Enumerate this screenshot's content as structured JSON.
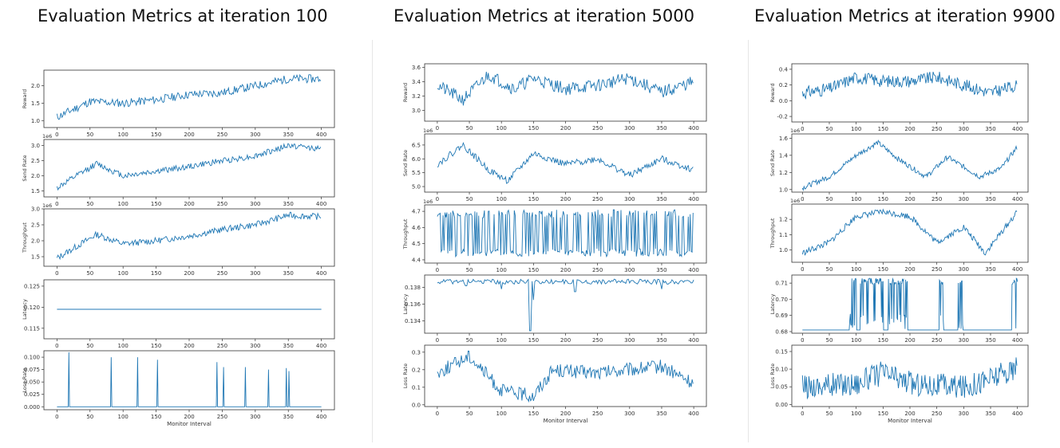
{
  "chart_data": [
    {
      "type": "line",
      "title": "Evaluation Metrics at iteration 100",
      "xlabel": "Monitor Interval",
      "xlim": [
        0,
        400
      ],
      "xticks": [
        "0",
        "50",
        "100",
        "150",
        "200",
        "250",
        "300",
        "350",
        "400"
      ],
      "color": "#1f77b4",
      "panels": [
        {
          "ylabel": "Reward",
          "ylim": [
            0.8,
            2.45
          ],
          "yticks": [
            "1.0",
            "1.5",
            "2.0"
          ],
          "offset": "",
          "shape": "trend",
          "base": 1.1,
          "amp": 1.1,
          "noise": 0.12,
          "seed": 11,
          "keypoints": [
            [
              0,
              1.1
            ],
            [
              50,
              1.55
            ],
            [
              100,
              1.5
            ],
            [
              150,
              1.6
            ],
            [
              200,
              1.75
            ],
            [
              250,
              1.8
            ],
            [
              300,
              2.0
            ],
            [
              350,
              2.2
            ],
            [
              400,
              2.2
            ]
          ]
        },
        {
          "ylabel": "Send Rate",
          "ylim": [
            1.3,
            3.2
          ],
          "yticks": [
            "1.5",
            "2.0",
            "2.5",
            "3.0"
          ],
          "offset": "1e6",
          "shape": "trend",
          "seed": 12,
          "noise": 0.1,
          "keypoints": [
            [
              0,
              1.6
            ],
            [
              60,
              2.4
            ],
            [
              100,
              2.0
            ],
            [
              150,
              2.15
            ],
            [
              200,
              2.3
            ],
            [
              250,
              2.5
            ],
            [
              300,
              2.65
            ],
            [
              350,
              3.0
            ],
            [
              400,
              2.9
            ]
          ]
        },
        {
          "ylabel": "Throughput",
          "ylim": [
            1.2,
            3.0
          ],
          "yticks": [
            "1.5",
            "2.0",
            "2.5",
            "3.0"
          ],
          "offset": "1e6",
          "shape": "trend",
          "seed": 13,
          "noise": 0.1,
          "keypoints": [
            [
              0,
              1.45
            ],
            [
              60,
              2.2
            ],
            [
              100,
              1.9
            ],
            [
              150,
              2.0
            ],
            [
              200,
              2.15
            ],
            [
              250,
              2.35
            ],
            [
              300,
              2.5
            ],
            [
              350,
              2.8
            ],
            [
              400,
              2.75
            ]
          ]
        },
        {
          "ylabel": "Latency",
          "ylim": [
            0.1125,
            0.1265
          ],
          "yticks": [
            "0.115",
            "0.120",
            "0.125"
          ],
          "offset": "",
          "shape": "flat",
          "value": 0.1195
        },
        {
          "ylabel": "Loss Rate",
          "ylim": [
            -0.006,
            0.113
          ],
          "yticks": [
            "0.000",
            "0.025",
            "0.050",
            "0.075",
            "0.100"
          ],
          "offset": "",
          "shape": "spikes",
          "spikes": [
            [
              18,
              0.11
            ],
            [
              82,
              0.1
            ],
            [
              122,
              0.1
            ],
            [
              152,
              0.095
            ],
            [
              242,
              0.09
            ],
            [
              252,
              0.08
            ],
            [
              285,
              0.08
            ],
            [
              320,
              0.075
            ],
            [
              347,
              0.078
            ],
            [
              351,
              0.072
            ]
          ]
        }
      ]
    },
    {
      "type": "line",
      "title": "Evaluation Metrics at iteration 5000",
      "xlabel": "Monitor Interval",
      "xlim": [
        0,
        400
      ],
      "xticks": [
        "0",
        "50",
        "100",
        "150",
        "200",
        "250",
        "300",
        "350",
        "400"
      ],
      "color": "#1f77b4",
      "panels": [
        {
          "ylabel": "Reward",
          "ylim": [
            2.85,
            3.65
          ],
          "yticks": [
            "3.0",
            "3.2",
            "3.4",
            "3.6"
          ],
          "offset": "",
          "shape": "noisy",
          "seed": 21,
          "noise": 0.09,
          "keypoints": [
            [
              0,
              3.35
            ],
            [
              40,
              3.15
            ],
            [
              80,
              3.5
            ],
            [
              120,
              3.3
            ],
            [
              150,
              3.45
            ],
            [
              200,
              3.3
            ],
            [
              250,
              3.35
            ],
            [
              300,
              3.45
            ],
            [
              350,
              3.25
            ],
            [
              400,
              3.4
            ]
          ]
        },
        {
          "ylabel": "Send Rate",
          "ylim": [
            4.8,
            6.9
          ],
          "yticks": [
            "5.0",
            "5.5",
            "6.0",
            "6.5"
          ],
          "offset": "1e6",
          "shape": "noisy",
          "seed": 22,
          "noise": 0.12,
          "keypoints": [
            [
              0,
              5.8
            ],
            [
              40,
              6.5
            ],
            [
              80,
              5.6
            ],
            [
              110,
              5.2
            ],
            [
              150,
              6.2
            ],
            [
              200,
              5.8
            ],
            [
              250,
              6.0
            ],
            [
              300,
              5.4
            ],
            [
              350,
              6.0
            ],
            [
              400,
              5.6
            ]
          ]
        },
        {
          "ylabel": "Throughput",
          "ylim": [
            4.38,
            4.74
          ],
          "yticks": [
            "4.4",
            "4.5",
            "4.6",
            "4.7"
          ],
          "offset": "1e6",
          "shape": "osc",
          "seed": 23,
          "low": 4.42,
          "high": 4.71
        },
        {
          "ylabel": "Latency",
          "ylim": [
            0.1325,
            0.1395
          ],
          "yticks": [
            "0.134",
            "0.136",
            "0.138"
          ],
          "offset": "",
          "shape": "latency",
          "seed": 24,
          "base": 0.139,
          "noise": 0.0002,
          "dips": [
            [
              45,
              0.1382
            ],
            [
              100,
              0.1378
            ],
            [
              145,
              0.1328
            ],
            [
              150,
              0.1365
            ],
            [
              215,
              0.1375
            ],
            [
              350,
              0.1378
            ]
          ]
        },
        {
          "ylabel": "Loss Rate",
          "ylim": [
            -0.01,
            0.34
          ],
          "yticks": [
            "0.0",
            "0.1",
            "0.2",
            "0.3"
          ],
          "offset": "",
          "shape": "noisy",
          "seed": 25,
          "noise": 0.04,
          "keypoints": [
            [
              0,
              0.18
            ],
            [
              50,
              0.28
            ],
            [
              100,
              0.08
            ],
            [
              150,
              0.05
            ],
            [
              180,
              0.2
            ],
            [
              250,
              0.18
            ],
            [
              300,
              0.2
            ],
            [
              350,
              0.22
            ],
            [
              400,
              0.12
            ]
          ]
        }
      ]
    },
    {
      "type": "line",
      "title": "Evaluation Metrics at iteration 9900",
      "xlabel": "Monitor Interval",
      "xlim": [
        0,
        400
      ],
      "xticks": [
        "0",
        "50",
        "100",
        "150",
        "200",
        "250",
        "300",
        "350",
        "400"
      ],
      "color": "#1f77b4",
      "panels": [
        {
          "ylabel": "Reward",
          "ylim": [
            -0.27,
            0.47
          ],
          "yticks": [
            "-0.2",
            "0.0",
            "0.2",
            "0.4"
          ],
          "offset": "",
          "shape": "noisy",
          "seed": 31,
          "noise": 0.08,
          "keypoints": [
            [
              0,
              0.1
            ],
            [
              50,
              0.15
            ],
            [
              100,
              0.3
            ],
            [
              150,
              0.25
            ],
            [
              200,
              0.25
            ],
            [
              250,
              0.3
            ],
            [
              300,
              0.2
            ],
            [
              350,
              0.1
            ],
            [
              400,
              0.2
            ]
          ]
        },
        {
          "ylabel": "Send Rate",
          "ylim": [
            0.97,
            1.65
          ],
          "yticks": [
            "1.0",
            "1.2",
            "1.4",
            "1.6"
          ],
          "offset": "1e6",
          "shape": "noisy",
          "seed": 32,
          "noise": 0.03,
          "keypoints": [
            [
              0,
              1.02
            ],
            [
              50,
              1.15
            ],
            [
              100,
              1.4
            ],
            [
              140,
              1.55
            ],
            [
              180,
              1.35
            ],
            [
              230,
              1.15
            ],
            [
              270,
              1.38
            ],
            [
              330,
              1.15
            ],
            [
              370,
              1.25
            ],
            [
              400,
              1.5
            ]
          ]
        },
        {
          "ylabel": "Throughput",
          "ylim": [
            0.92,
            1.3
          ],
          "yticks": [
            "1.0",
            "1.1",
            "1.2"
          ],
          "offset": "1e6",
          "shape": "noisy",
          "seed": 33,
          "noise": 0.02,
          "keypoints": [
            [
              0,
              0.98
            ],
            [
              50,
              1.05
            ],
            [
              100,
              1.22
            ],
            [
              150,
              1.25
            ],
            [
              200,
              1.22
            ],
            [
              250,
              1.05
            ],
            [
              300,
              1.15
            ],
            [
              340,
              0.98
            ],
            [
              400,
              1.25
            ]
          ]
        },
        {
          "ylabel": "Latency",
          "ylim": [
            0.679,
            0.715
          ],
          "yticks": [
            "0.68",
            "0.69",
            "0.70",
            "0.71"
          ],
          "offset": "",
          "shape": "blocks",
          "seed": 34,
          "low": 0.681,
          "high": 0.713,
          "blocks": [
            [
              88,
              100
            ],
            [
              108,
              150
            ],
            [
              160,
              195
            ],
            [
              255,
              262
            ],
            [
              290,
              298
            ],
            [
              390,
              400
            ]
          ]
        },
        {
          "ylabel": "Loss Rate",
          "ylim": [
            -0.006,
            0.168
          ],
          "yticks": [
            "0.00",
            "0.05",
            "0.10",
            "0.15"
          ],
          "offset": "",
          "shape": "noisy",
          "seed": 35,
          "noise": 0.035,
          "keypoints": [
            [
              0,
              0.05
            ],
            [
              100,
              0.06
            ],
            [
              150,
              0.09
            ],
            [
              200,
              0.06
            ],
            [
              300,
              0.05
            ],
            [
              400,
              0.1
            ]
          ]
        }
      ]
    }
  ]
}
